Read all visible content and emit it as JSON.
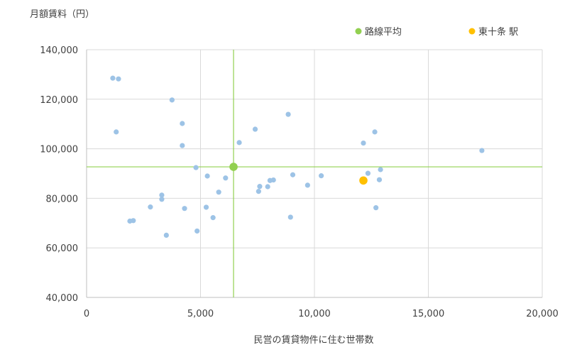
{
  "chart_data": {
    "type": "scatter",
    "ylabel": "月額賃料（円）",
    "xlabel": "民営の賃貸物件に住む世帯数",
    "xlim": [
      0,
      20000
    ],
    "ylim": [
      40000,
      140000
    ],
    "x_ticks": [
      0,
      5000,
      10000,
      15000,
      20000
    ],
    "x_tick_labels": [
      "0",
      "5,000",
      "10,000",
      "15,000",
      "20,000"
    ],
    "y_ticks": [
      40000,
      60000,
      80000,
      100000,
      120000,
      140000
    ],
    "y_tick_labels": [
      "40,000",
      "60,000",
      "80,000",
      "100,000",
      "120,000",
      "140,000"
    ],
    "grid": true,
    "legend_position": "top-right",
    "series": [
      {
        "name": "",
        "color": "#9dc3e6",
        "points": [
          [
            1150,
            128500
          ],
          [
            1400,
            128200
          ],
          [
            1300,
            106800
          ],
          [
            3750,
            119700
          ],
          [
            4200,
            110200
          ],
          [
            4200,
            101300
          ],
          [
            4800,
            92400
          ],
          [
            5300,
            89000
          ],
          [
            6700,
            102500
          ],
          [
            7400,
            107900
          ],
          [
            8850,
            113900
          ],
          [
            6100,
            88200
          ],
          [
            5800,
            82500
          ],
          [
            7600,
            84800
          ],
          [
            7550,
            82800
          ],
          [
            7950,
            84700
          ],
          [
            8050,
            87200
          ],
          [
            8200,
            87400
          ],
          [
            9050,
            89500
          ],
          [
            9700,
            85300
          ],
          [
            10300,
            89100
          ],
          [
            12150,
            102300
          ],
          [
            12650,
            106800
          ],
          [
            12350,
            90100
          ],
          [
            12900,
            91600
          ],
          [
            12850,
            87500
          ],
          [
            12700,
            76200
          ],
          [
            17350,
            99300
          ],
          [
            8950,
            72400
          ],
          [
            5250,
            76400
          ],
          [
            5550,
            72200
          ],
          [
            4300,
            75900
          ],
          [
            3300,
            81300
          ],
          [
            3300,
            79600
          ],
          [
            2800,
            76500
          ],
          [
            1900,
            70800
          ],
          [
            2050,
            71000
          ],
          [
            3500,
            65100
          ],
          [
            4850,
            66800
          ]
        ]
      },
      {
        "name": "路線平均",
        "color": "#92d050",
        "points": [
          [
            6450,
            92700
          ]
        ],
        "crosshair": true
      },
      {
        "name": "東十条 駅",
        "color": "#ffc000",
        "points": [
          [
            12150,
            87200
          ]
        ]
      }
    ]
  }
}
